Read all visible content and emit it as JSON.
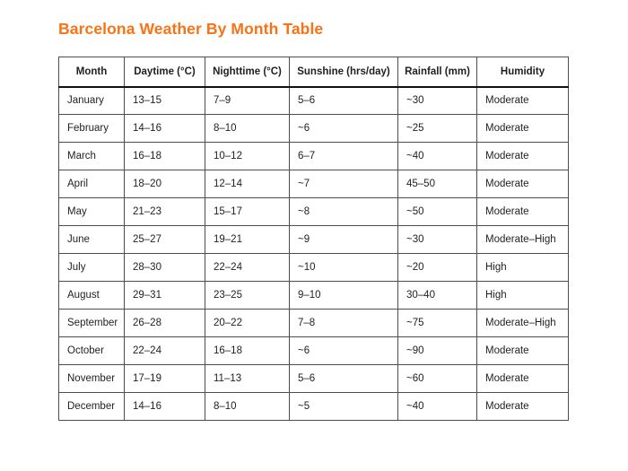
{
  "title": "Barcelona Weather By Month Table",
  "colors": {
    "accent": "#f97316",
    "border": "#4d4d4d",
    "heavy_border": "#111111",
    "text": "#1f1f1f",
    "background": "#ffffff"
  },
  "table": {
    "columns": [
      {
        "key": "month",
        "label": "Month"
      },
      {
        "key": "daytime",
        "label": "Daytime (°C)"
      },
      {
        "key": "nighttime",
        "label": "Nighttime (°C)"
      },
      {
        "key": "sunshine",
        "label": "Sunshine (hrs/day)"
      },
      {
        "key": "rainfall",
        "label": "Rainfall (mm)"
      },
      {
        "key": "humidity",
        "label": "Humidity"
      }
    ],
    "rows": [
      {
        "month": "January",
        "daytime": "13–15",
        "nighttime": "7–9",
        "sunshine": "5–6",
        "rainfall": "~30",
        "humidity": "Moderate"
      },
      {
        "month": "February",
        "daytime": "14–16",
        "nighttime": "8–10",
        "sunshine": "~6",
        "rainfall": "~25",
        "humidity": "Moderate"
      },
      {
        "month": "March",
        "daytime": "16–18",
        "nighttime": "10–12",
        "sunshine": "6–7",
        "rainfall": "~40",
        "humidity": "Moderate"
      },
      {
        "month": "April",
        "daytime": "18–20",
        "nighttime": "12–14",
        "sunshine": "~7",
        "rainfall": "45–50",
        "humidity": "Moderate"
      },
      {
        "month": "May",
        "daytime": "21–23",
        "nighttime": "15–17",
        "sunshine": "~8",
        "rainfall": "~50",
        "humidity": "Moderate"
      },
      {
        "month": "June",
        "daytime": "25–27",
        "nighttime": "19–21",
        "sunshine": "~9",
        "rainfall": "~30",
        "humidity": "Moderate–High"
      },
      {
        "month": "July",
        "daytime": "28–30",
        "nighttime": "22–24",
        "sunshine": "~10",
        "rainfall": "~20",
        "humidity": "High"
      },
      {
        "month": "August",
        "daytime": "29–31",
        "nighttime": "23–25",
        "sunshine": "9–10",
        "rainfall": "30–40",
        "humidity": "High"
      },
      {
        "month": "September",
        "daytime": "26–28",
        "nighttime": "20–22",
        "sunshine": "7–8",
        "rainfall": "~75",
        "humidity": "Moderate–High"
      },
      {
        "month": "October",
        "daytime": "22–24",
        "nighttime": "16–18",
        "sunshine": "~6",
        "rainfall": "~90",
        "humidity": "Moderate"
      },
      {
        "month": "November",
        "daytime": "17–19",
        "nighttime": "11–13",
        "sunshine": "5–6",
        "rainfall": "~60",
        "humidity": "Moderate"
      },
      {
        "month": "December",
        "daytime": "14–16",
        "nighttime": "8–10",
        "sunshine": "~5",
        "rainfall": "~40",
        "humidity": "Moderate"
      }
    ]
  }
}
